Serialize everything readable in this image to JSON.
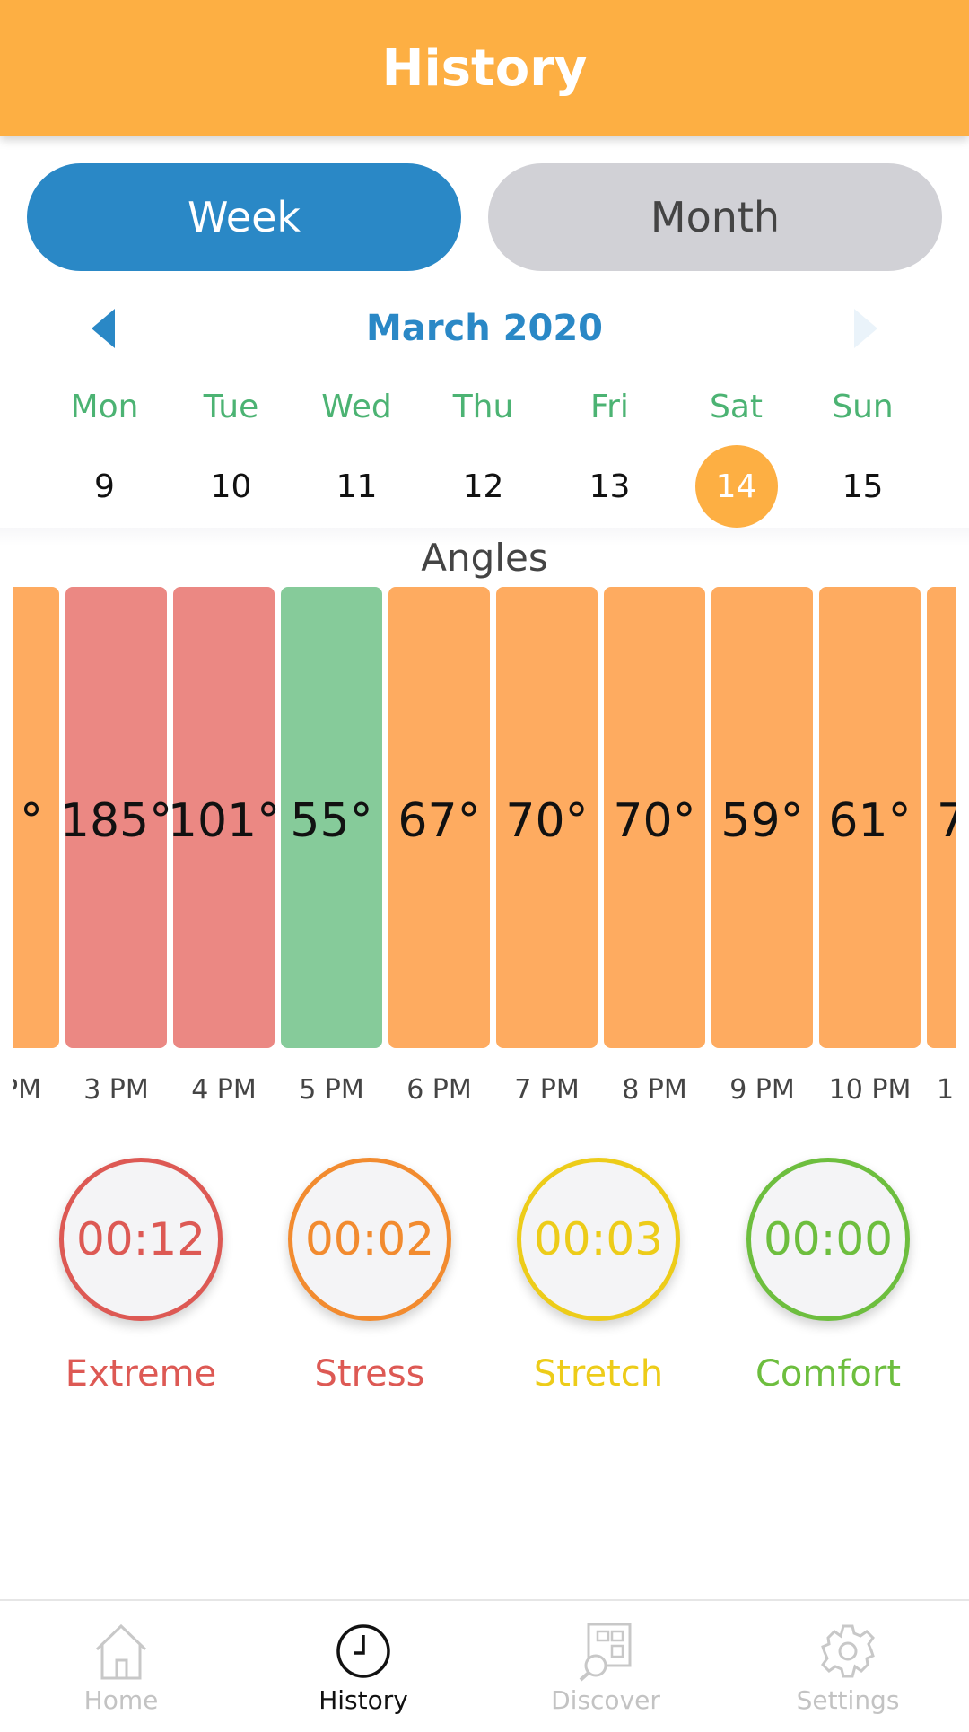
{
  "header": {
    "title": "History"
  },
  "toggle": {
    "week_label": "Week",
    "month_label": "Month",
    "selected": "Week"
  },
  "calendar": {
    "month_label": "March 2020",
    "days": [
      {
        "name": "Mon",
        "date": "9"
      },
      {
        "name": "Tue",
        "date": "10"
      },
      {
        "name": "Wed",
        "date": "11"
      },
      {
        "name": "Thu",
        "date": "12"
      },
      {
        "name": "Fri",
        "date": "13"
      },
      {
        "name": "Sat",
        "date": "14"
      },
      {
        "name": "Sun",
        "date": "15"
      }
    ],
    "selected_date": "14"
  },
  "chart_data": {
    "type": "bar",
    "title": "Angles",
    "unit": "°",
    "categories": [
      "PM",
      "3 PM",
      "4 PM",
      "5 PM",
      "6 PM",
      "7 PM",
      "8 PM",
      "9 PM",
      "10 PM",
      "1"
    ],
    "values": [
      null,
      185,
      101,
      55,
      67,
      70,
      70,
      59,
      61,
      null
    ],
    "value_labels": [
      "°",
      "185°",
      "101°",
      "55°",
      "67°",
      "70°",
      "70°",
      "59°",
      "61°",
      "7"
    ],
    "bar_colors": [
      "#FEAB60",
      "#EB8883",
      "#EB8883",
      "#86CB9A",
      "#FEAB60",
      "#FEAB60",
      "#FEAB60",
      "#FEAB60",
      "#FEAB60",
      "#FEAB60"
    ],
    "partial_first": true,
    "partial_last": true
  },
  "summary": [
    {
      "time": "00:12",
      "label": "Extreme",
      "color": "#DD5954"
    },
    {
      "time": "00:02",
      "label": "Stress",
      "color": "#F28B2F",
      "label_color": "#DD5954"
    },
    {
      "time": "00:03",
      "label": "Stretch",
      "color": "#EDCC19"
    },
    {
      "time": "00:00",
      "label": "Comfort",
      "color": "#6DBE3E"
    }
  ],
  "tabbar": {
    "items": [
      {
        "label": "Home",
        "icon": "home-icon"
      },
      {
        "label": "History",
        "icon": "clock-icon"
      },
      {
        "label": "Discover",
        "icon": "discover-icon"
      },
      {
        "label": "Settings",
        "icon": "gear-icon"
      }
    ],
    "active": "History"
  },
  "colors": {
    "accent_orange": "#FDAF43",
    "accent_blue": "#2A88C6",
    "day_name_green": "#4CB373"
  }
}
